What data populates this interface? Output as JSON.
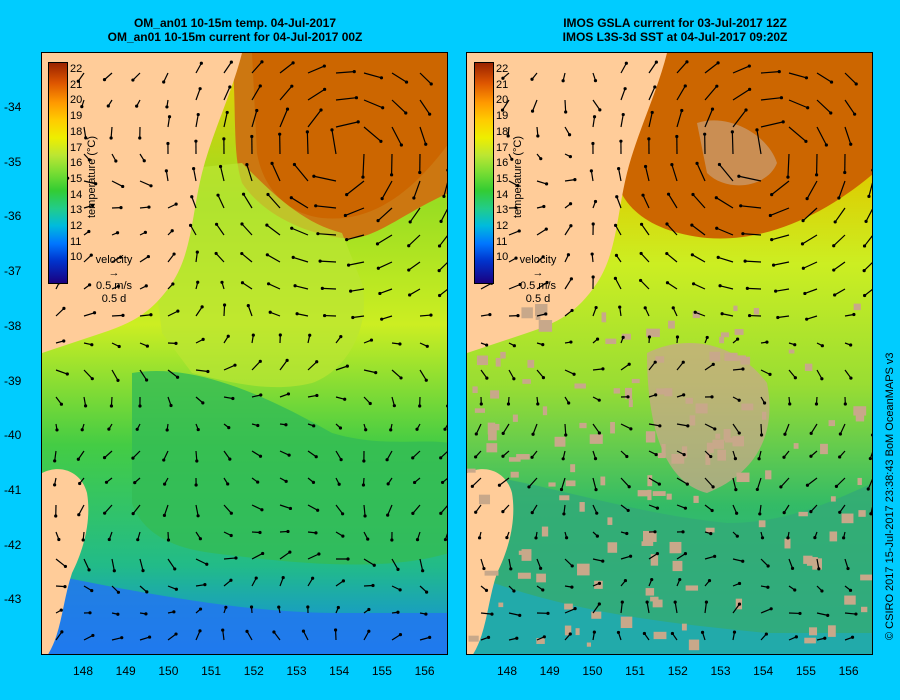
{
  "left_panel": {
    "title_line1": "OM_an01 10-15m temp. 04-Jul-2017",
    "title_line2": "OM_an01 10-15m current for 04-Jul-2017 00Z"
  },
  "right_panel": {
    "title_line1": "IMOS GSLA current for 03-Jul-2017 12Z",
    "title_line2": "IMOS L3S-3d SST at 04-Jul-2017 09:20Z"
  },
  "y_axis_labels": [
    "-34",
    "-35",
    "-36",
    "-37",
    "-38",
    "-39",
    "-40",
    "-41",
    "-42",
    "-43"
  ],
  "x_axis_labels": [
    "148",
    "149",
    "150",
    "151",
    "152",
    "153",
    "154",
    "155",
    "156"
  ],
  "legend": {
    "title": "temperature (°C)",
    "values": [
      "22",
      "21",
      "20",
      "19",
      "18",
      "17",
      "16",
      "15",
      "14",
      "13",
      "12",
      "11",
      "10"
    ]
  },
  "velocity_key": {
    "label": "velocity",
    "speed": "0.5 m/s",
    "duration": "0.5 d"
  },
  "credit": "© CSIRO 2017  15-Jul-2017 23:38:43 BoM OceanMAPS v3",
  "colors": {
    "background": "#00ccff",
    "land": "#ffcc99",
    "warm_eddy": "#cc6600",
    "no_data": "#c8a88a"
  },
  "icons": [
    "current-arrow-icon"
  ]
}
